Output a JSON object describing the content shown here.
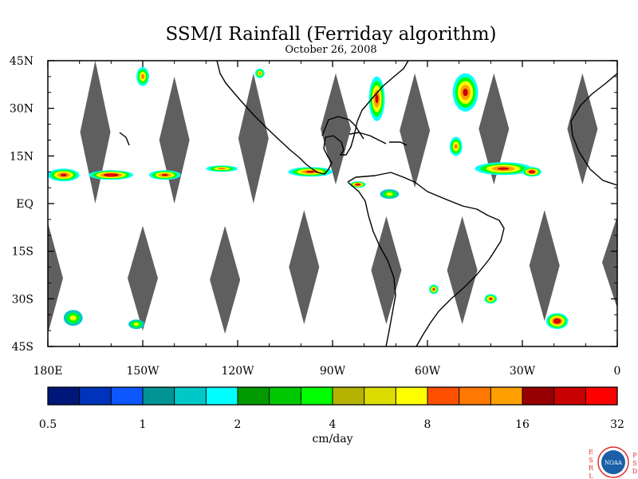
{
  "header": {
    "title": "SSM/I Rainfall (Ferriday algorithm)",
    "date": "October 26, 2008"
  },
  "map": {
    "lon_range": [
      -180,
      0
    ],
    "lat_range": [
      -45,
      45
    ],
    "lat_ticks": [
      {
        "value": 45,
        "label": "45N"
      },
      {
        "value": 30,
        "label": "30N"
      },
      {
        "value": 15,
        "label": "15N"
      },
      {
        "value": 0,
        "label": "EQ"
      },
      {
        "value": -15,
        "label": "15S"
      },
      {
        "value": -30,
        "label": "30S"
      },
      {
        "value": -45,
        "label": "45S"
      }
    ],
    "lon_ticks": [
      {
        "value": -180,
        "label": "180E"
      },
      {
        "value": -150,
        "label": "150W"
      },
      {
        "value": -120,
        "label": "120W"
      },
      {
        "value": -90,
        "label": "90W"
      },
      {
        "value": -60,
        "label": "60W"
      },
      {
        "value": -30,
        "label": "30W"
      },
      {
        "value": 0,
        "label": "0"
      }
    ],
    "colors": {
      "no_data": "#5f5f5f",
      "coast": "#000000",
      "frame": "#000000"
    },
    "no_data_swaths": [
      {
        "lon": -165,
        "lat_top": 45,
        "lat_bottom": 0
      },
      {
        "lon": -140,
        "lat_top": 40,
        "lat_bottom": 0
      },
      {
        "lon": -115,
        "lat_top": 41,
        "lat_bottom": 0
      },
      {
        "lon": -89,
        "lat_top": 41,
        "lat_bottom": 6
      },
      {
        "lon": -64,
        "lat_top": 41,
        "lat_bottom": 5
      },
      {
        "lon": -39,
        "lat_top": 41,
        "lat_bottom": 6
      },
      {
        "lon": -11,
        "lat_top": 41,
        "lat_bottom": 6
      },
      {
        "lon": -180,
        "lat_top": -6,
        "lat_bottom": -41
      },
      {
        "lon": -150,
        "lat_top": -7,
        "lat_bottom": -40
      },
      {
        "lon": -124,
        "lat_top": -7,
        "lat_bottom": -41
      },
      {
        "lon": -99,
        "lat_top": -2,
        "lat_bottom": -38
      },
      {
        "lon": -73,
        "lat_top": -4,
        "lat_bottom": -38
      },
      {
        "lon": -49,
        "lat_top": -4,
        "lat_bottom": -38
      },
      {
        "lon": -23,
        "lat_top": -2,
        "lat_bottom": -37
      },
      {
        "lon": 0,
        "lat_top": -4,
        "lat_bottom": -33
      }
    ],
    "rain_areas": [
      {
        "lon": -175,
        "lat": 9,
        "w": 10,
        "h": 4,
        "level": 4
      },
      {
        "lon": -160,
        "lat": 9,
        "w": 14,
        "h": 3,
        "level": 5
      },
      {
        "lon": -143,
        "lat": 9,
        "w": 10,
        "h": 3,
        "level": 4
      },
      {
        "lon": -125,
        "lat": 11,
        "w": 10,
        "h": 2,
        "level": 3
      },
      {
        "lon": -97,
        "lat": 10,
        "w": 14,
        "h": 3,
        "level": 4
      },
      {
        "lon": -82,
        "lat": 6,
        "w": 5,
        "h": 2,
        "level": 5
      },
      {
        "lon": -76,
        "lat": 33,
        "w": 5,
        "h": 14,
        "level": 4
      },
      {
        "lon": -48,
        "lat": 35,
        "w": 8,
        "h": 12,
        "level": 4
      },
      {
        "lon": -36,
        "lat": 11,
        "w": 18,
        "h": 4,
        "level": 4
      },
      {
        "lon": -27,
        "lat": 10,
        "w": 6,
        "h": 3,
        "level": 5
      },
      {
        "lon": -150,
        "lat": 40,
        "w": 4,
        "h": 6,
        "level": 3
      },
      {
        "lon": -51,
        "lat": 18,
        "w": 4,
        "h": 6,
        "level": 3
      },
      {
        "lon": -58,
        "lat": -27,
        "w": 3,
        "h": 3,
        "level": 4
      },
      {
        "lon": -40,
        "lat": -30,
        "w": 4,
        "h": 3,
        "level": 4
      },
      {
        "lon": -19,
        "lat": -37,
        "w": 7,
        "h": 5,
        "level": 5
      },
      {
        "lon": -172,
        "lat": -36,
        "w": 6,
        "h": 5,
        "level": 2
      },
      {
        "lon": -152,
        "lat": -38,
        "w": 5,
        "h": 3,
        "level": 2
      },
      {
        "lon": -113,
        "lat": 41,
        "w": 3,
        "h": 3,
        "level": 3
      },
      {
        "lon": -72,
        "lat": 3,
        "w": 6,
        "h": 3,
        "level": 2
      }
    ]
  },
  "colorbar": {
    "colors": [
      "#00177a",
      "#0033bb",
      "#0e57ff",
      "#009494",
      "#00c8c8",
      "#00ffff",
      "#009a00",
      "#00c800",
      "#00ff00",
      "#b4b400",
      "#dcdc00",
      "#ffff00",
      "#ff5000",
      "#ff7800",
      "#ffa000",
      "#960000",
      "#c80000",
      "#ff0000"
    ],
    "ticks": [
      "0.5",
      "1",
      "2",
      "4",
      "8",
      "16",
      "32"
    ],
    "label": "cm/day"
  },
  "logo": {
    "left_letters": [
      "E",
      "S",
      "R",
      "L"
    ],
    "right_letters": [
      "P",
      "S",
      "D"
    ],
    "badge_text": "NOAA",
    "color": "#e03030",
    "badge_color": "#1a5fa8"
  }
}
